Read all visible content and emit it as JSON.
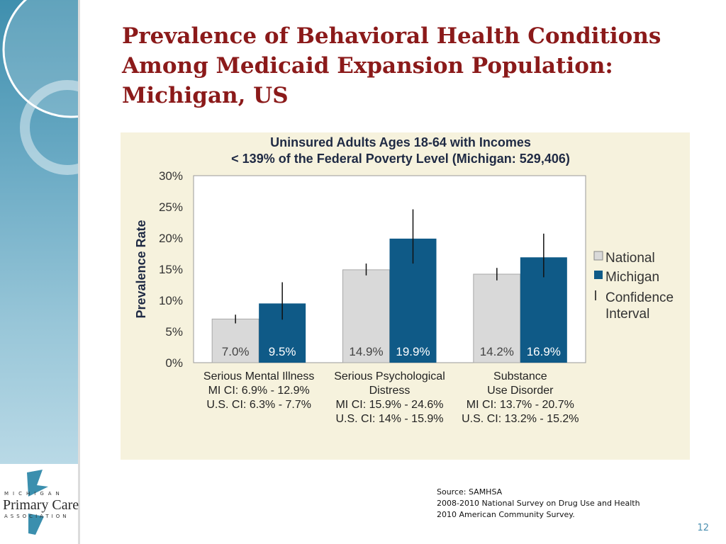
{
  "slide": {
    "title": "Prevalence of Behavioral Health Conditions Among Medicaid Expansion Population: Michigan, US",
    "page_number": "12"
  },
  "source": {
    "lines": [
      "Source: SAMHSA",
      "2008-2010 National Survey on Drug Use and Health",
      "2010 American Community Survey."
    ]
  },
  "logo": {
    "top_text": "MICHIGAN",
    "main_text": "Primary Care",
    "bottom_text": "ASSOCIATION"
  },
  "colors": {
    "national": "#d9d9d9",
    "michigan": "#0f5a87",
    "title": "#8b1a1a",
    "panel": "#f6f2dd"
  },
  "chart_data": {
    "type": "bar",
    "title": [
      "Uninsured Adults Ages 18-64 with Incomes",
      "< 139% of the Federal Poverty Level (Michigan: 529,406)"
    ],
    "ylabel": "Prevalence Rate",
    "ylim": [
      0,
      30
    ],
    "yticks": [
      "0%",
      "5%",
      "10%",
      "15%",
      "20%",
      "25%",
      "30%"
    ],
    "legend_position": "right",
    "legend": [
      "National",
      "Michigan",
      "Confidence Interval"
    ],
    "categories": [
      {
        "label": [
          "Serious Mental Illness"
        ],
        "notes": [
          "MI CI: 6.9% - 12.9%",
          "U.S. CI: 6.3% - 7.7%"
        ]
      },
      {
        "label": [
          "Serious Psychological",
          "Distress"
        ],
        "notes": [
          "MI CI: 15.9% - 24.6%",
          "U.S. CI: 14% - 15.9%"
        ]
      },
      {
        "label": [
          "Substance",
          "Use Disorder"
        ],
        "notes": [
          "MI CI: 13.7% - 20.7%",
          "U.S. CI: 13.2% - 15.2%"
        ]
      }
    ],
    "series": [
      {
        "name": "National",
        "values": [
          7.0,
          14.9,
          14.2
        ],
        "labels": [
          "7.0%",
          "14.9%",
          "14.2%"
        ],
        "ci": [
          [
            6.3,
            7.7
          ],
          [
            14,
            15.9
          ],
          [
            13.2,
            15.2
          ]
        ]
      },
      {
        "name": "Michigan",
        "values": [
          9.5,
          19.9,
          16.9
        ],
        "labels": [
          "9.5%",
          "19.9%",
          "16.9%"
        ],
        "ci": [
          [
            6.9,
            12.9
          ],
          [
            15.9,
            24.6
          ],
          [
            13.7,
            20.7
          ]
        ]
      }
    ]
  }
}
